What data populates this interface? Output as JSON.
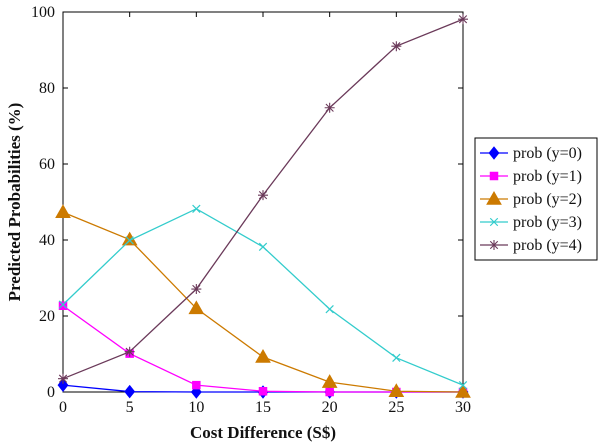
{
  "chart_data": {
    "type": "line",
    "title": "",
    "xlabel": "Cost Difference (S$)",
    "ylabel": "Predicted Probabilities (%)",
    "x": [
      0,
      5,
      10,
      15,
      20,
      25,
      30
    ],
    "xlim": [
      0,
      30
    ],
    "ylim": [
      0,
      100
    ],
    "xticks": [
      0,
      5,
      10,
      15,
      20,
      25,
      30
    ],
    "yticks": [
      0,
      20,
      40,
      60,
      80,
      100
    ],
    "grid": false,
    "legend_position": "right",
    "series": [
      {
        "name": "prob (y=0)",
        "color": "#0000ff",
        "marker": "diamond",
        "values": [
          1.8,
          0.1,
          0.0,
          0.0,
          0.0,
          0.0,
          0.0
        ]
      },
      {
        "name": "prob (y=1)",
        "color": "#ff00ff",
        "marker": "square",
        "values": [
          22.7,
          10.1,
          1.8,
          0.2,
          0.0,
          0.0,
          0.0
        ]
      },
      {
        "name": "prob (y=2)",
        "color": "#cc7a00",
        "marker": "triangle",
        "values": [
          47.3,
          40.1,
          22.0,
          9.2,
          2.6,
          0.2,
          0.0
        ]
      },
      {
        "name": "prob (y=3)",
        "color": "#33cccc",
        "marker": "x",
        "values": [
          23.0,
          39.9,
          48.2,
          38.2,
          21.8,
          9.0,
          1.8
        ]
      },
      {
        "name": "prob (y=4)",
        "color": "#6b3a5a",
        "marker": "asterisk",
        "values": [
          3.5,
          10.6,
          27.1,
          51.8,
          74.8,
          91.0,
          98.1
        ]
      }
    ]
  }
}
